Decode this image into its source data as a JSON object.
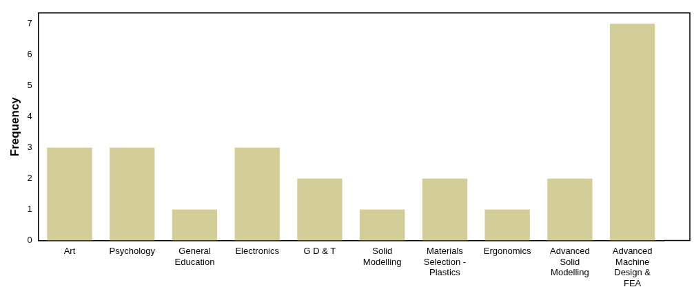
{
  "chart_data": {
    "type": "bar",
    "ylabel": "Frequency",
    "categories": [
      "Art",
      "Psychology",
      "General Education",
      "Electronics",
      "G D & T",
      "Solid Modelling",
      "Materials Selection - Plastics",
      "Ergonomics",
      "Advanced Solid Modelling",
      "Advanced Machine Design & FEA"
    ],
    "values": [
      3,
      3,
      1,
      3,
      2,
      1,
      2,
      1,
      2,
      7
    ],
    "color": "#d3cd98",
    "ylim": [
      0,
      7.35
    ],
    "yticks": [
      0,
      1,
      2,
      3,
      4,
      5,
      6,
      7
    ],
    "grid": false,
    "legend": false
  }
}
